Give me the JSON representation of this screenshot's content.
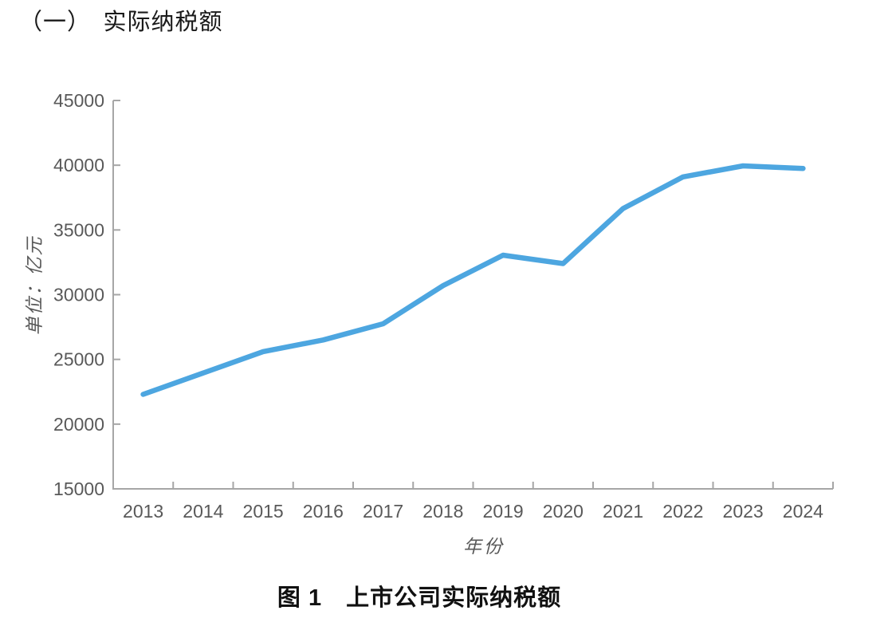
{
  "page": {
    "section_title": "（一）　实际纳税额",
    "caption": "图 1　上市公司实际纳税额"
  },
  "chart_data": {
    "type": "line",
    "title": "",
    "xlabel": "年份",
    "ylabel": "单位：亿元",
    "categories": [
      "2013",
      "2014",
      "2015",
      "2016",
      "2017",
      "2018",
      "2019",
      "2020",
      "2021",
      "2022",
      "2023",
      "2024"
    ],
    "series": [
      {
        "name": "上市公司实际纳税额",
        "values": [
          22300,
          23950,
          25600,
          26500,
          27750,
          30700,
          33050,
          32400,
          36650,
          39100,
          39950,
          39750
        ]
      }
    ],
    "ylim": [
      15000,
      45000
    ],
    "ytick_step": 5000,
    "grid": false,
    "legend": "none",
    "line_color": "#4DA6E0",
    "axis_color": "#A6A6A6",
    "tick_label_color": "#595959"
  }
}
